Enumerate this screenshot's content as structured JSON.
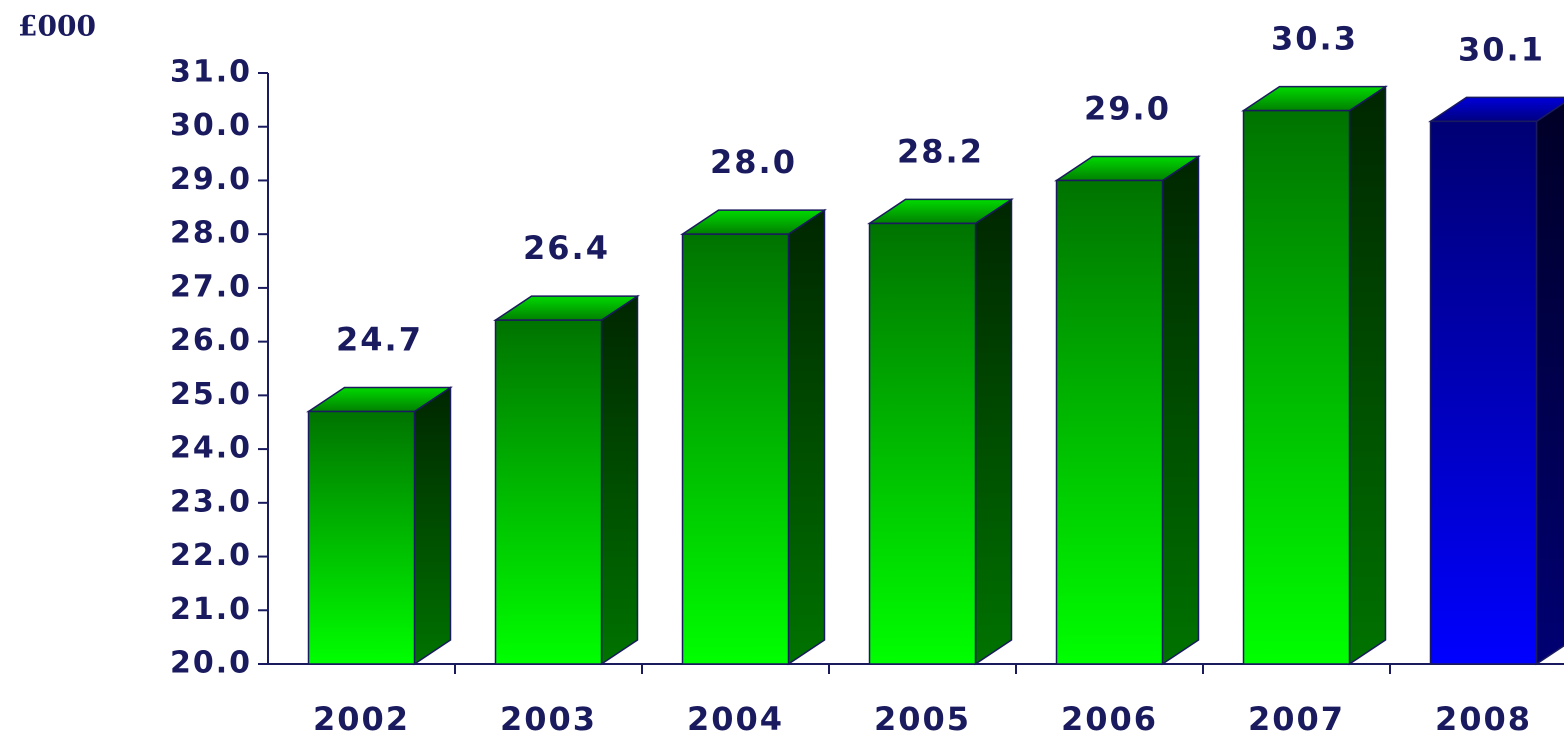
{
  "chart_data": {
    "type": "bar3d",
    "y_axis_label": "£000",
    "categories": [
      "2002",
      "2003",
      "2004",
      "2005",
      "2006",
      "2007",
      "2008"
    ],
    "values": [
      24.7,
      26.4,
      28.0,
      28.2,
      29.0,
      30.3,
      30.1
    ],
    "value_labels": [
      "24.7",
      "26.4",
      "28.0",
      "28.2",
      "29.0",
      "30.3",
      "30.1"
    ],
    "colors": [
      "#00ff00",
      "#00ff00",
      "#00ff00",
      "#00ff00",
      "#00ff00",
      "#00ff00",
      "#0000ff"
    ],
    "ylim": [
      20,
      31
    ],
    "yticks": [
      {
        "value": 20,
        "label": "20.0"
      },
      {
        "value": 21,
        "label": "21.0"
      },
      {
        "value": 22,
        "label": "22.0"
      },
      {
        "value": 23,
        "label": "23.0"
      },
      {
        "value": 24,
        "label": "24.0"
      },
      {
        "value": 25,
        "label": "25.0"
      },
      {
        "value": 26,
        "label": "26.0"
      },
      {
        "value": 27,
        "label": "27.0"
      },
      {
        "value": 28,
        "label": "28.0"
      },
      {
        "value": 29,
        "label": "29.0"
      },
      {
        "value": 30,
        "label": "30.0"
      },
      {
        "value": 31,
        "label": "31.0"
      }
    ]
  }
}
